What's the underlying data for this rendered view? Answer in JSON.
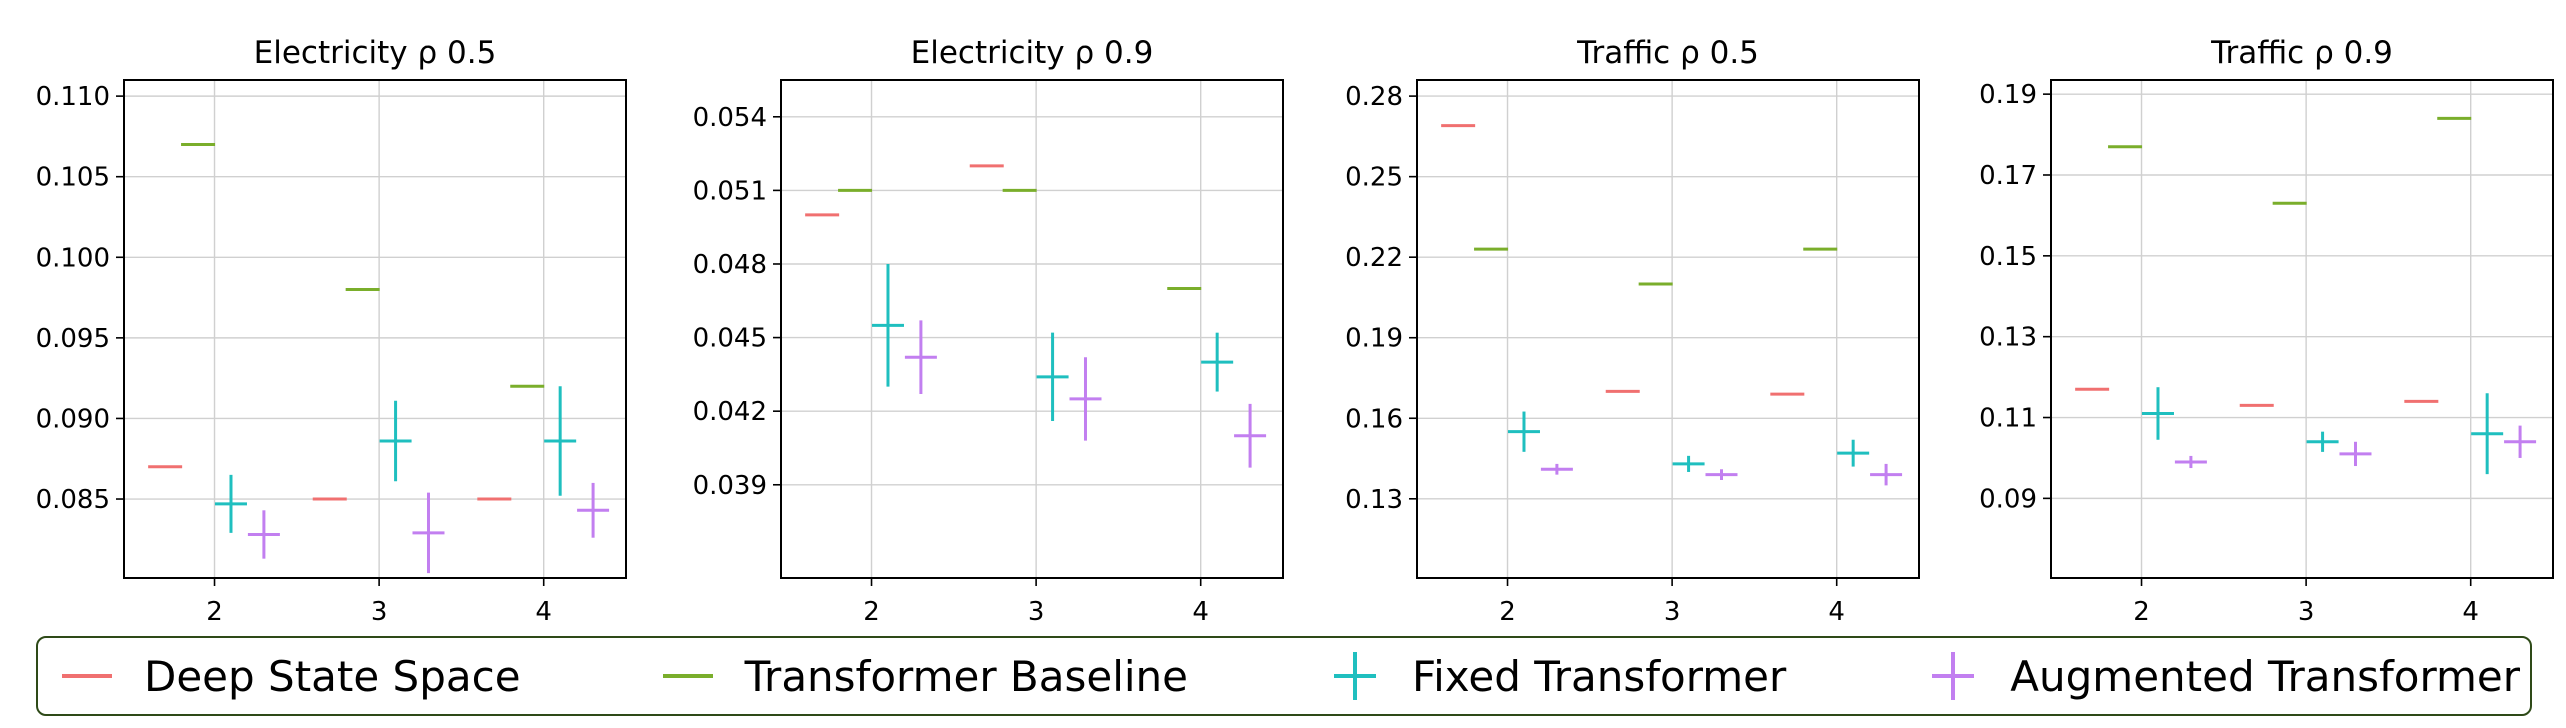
{
  "legend": {
    "items": [
      {
        "label": "Deep State Space",
        "color": "#f07070",
        "marker": "dash"
      },
      {
        "label": "Transformer Baseline",
        "color": "#7aae2b",
        "marker": "dash"
      },
      {
        "label": "Fixed Transformer",
        "color": "#1fbfbf",
        "marker": "cross"
      },
      {
        "label": "Augmented Transformer",
        "color": "#c27ff0",
        "marker": "cross"
      }
    ]
  },
  "chart_data": [
    {
      "type": "scatter",
      "title": "Electricity ρ 0.5",
      "categories": [
        "2",
        "3",
        "4"
      ],
      "xlim": [
        1.45,
        4.5
      ],
      "ylim": [
        0.0801,
        0.111
      ],
      "yticks": [
        "0.110",
        "0.105",
        "0.100",
        "0.095",
        "0.090",
        "0.085"
      ],
      "grid": true,
      "series": [
        {
          "name": "Deep State Space",
          "x": [
            1.7,
            2.7,
            3.7
          ],
          "y": [
            0.087,
            0.085,
            0.085
          ]
        },
        {
          "name": "Transformer Baseline",
          "x": [
            1.9,
            2.9,
            3.9
          ],
          "y": [
            0.107,
            0.098,
            0.092
          ]
        },
        {
          "name": "Fixed Transformer",
          "x": [
            2.1,
            3.1,
            4.1
          ],
          "y": [
            0.0847,
            0.0886,
            0.0886
          ],
          "err": [
            0.0018,
            0.0025,
            0.0034
          ]
        },
        {
          "name": "Augmented Transformer",
          "x": [
            2.3,
            3.3,
            4.3
          ],
          "y": [
            0.0828,
            0.0829,
            0.0843
          ],
          "err": [
            0.0015,
            0.0025,
            0.0017
          ]
        }
      ]
    },
    {
      "type": "scatter",
      "title": "Electricity ρ 0.9",
      "categories": [
        "2",
        "3",
        "4"
      ],
      "xlim": [
        1.45,
        4.5
      ],
      "ylim": [
        0.0352,
        0.0555
      ],
      "yticks": [
        "0.054",
        "0.051",
        "0.048",
        "0.045",
        "0.042",
        "0.039"
      ],
      "grid": true,
      "series": [
        {
          "name": "Deep State Space",
          "x": [
            1.7,
            2.7,
            3.7
          ],
          "y": [
            0.05,
            0.052,
            null
          ]
        },
        {
          "name": "Transformer Baseline",
          "x": [
            1.9,
            2.9,
            3.9
          ],
          "y": [
            0.051,
            0.051,
            0.047
          ]
        },
        {
          "name": "Fixed Transformer",
          "x": [
            2.1,
            3.1,
            4.1
          ],
          "y": [
            0.0455,
            0.0434,
            0.044
          ],
          "err": [
            0.0025,
            0.0018,
            0.0012
          ]
        },
        {
          "name": "Augmented Transformer",
          "x": [
            2.3,
            3.3,
            4.3
          ],
          "y": [
            0.0442,
            0.0425,
            0.041
          ],
          "err": [
            0.0015,
            0.0017,
            0.0013
          ]
        }
      ]
    },
    {
      "type": "scatter",
      "title": "Traffic ρ 0.5",
      "categories": [
        "2",
        "3",
        "4"
      ],
      "xlim": [
        1.45,
        4.5
      ],
      "ylim": [
        0.1005,
        0.286
      ],
      "yticks": [
        "0.28",
        "0.25",
        "0.22",
        "0.19",
        "0.16",
        "0.13"
      ],
      "grid": true,
      "series": [
        {
          "name": "Deep State Space",
          "x": [
            1.7,
            2.7,
            3.7
          ],
          "y": [
            0.269,
            0.17,
            0.169
          ]
        },
        {
          "name": "Transformer Baseline",
          "x": [
            1.9,
            2.9,
            3.9
          ],
          "y": [
            0.223,
            0.21,
            0.223
          ]
        },
        {
          "name": "Fixed Transformer",
          "x": [
            2.1,
            3.1,
            4.1
          ],
          "y": [
            0.155,
            0.143,
            0.147
          ],
          "err": [
            0.0075,
            0.003,
            0.005
          ]
        },
        {
          "name": "Augmented Transformer",
          "x": [
            2.3,
            3.3,
            4.3
          ],
          "y": [
            0.141,
            0.139,
            0.139
          ],
          "err": [
            0.002,
            0.002,
            0.004
          ]
        }
      ]
    },
    {
      "type": "scatter",
      "title": "Traffic ρ 0.9",
      "categories": [
        "2",
        "3",
        "4"
      ],
      "xlim": [
        1.45,
        4.5
      ],
      "ylim": [
        0.0703,
        0.1935
      ],
      "yticks": [
        "0.19",
        "0.17",
        "0.15",
        "0.13",
        "0.11",
        "0.09"
      ],
      "grid": true,
      "series": [
        {
          "name": "Deep State Space",
          "x": [
            1.7,
            2.7,
            3.7
          ],
          "y": [
            0.117,
            0.113,
            0.114
          ]
        },
        {
          "name": "Transformer Baseline",
          "x": [
            1.9,
            2.9,
            3.9
          ],
          "y": [
            0.177,
            0.163,
            0.184
          ]
        },
        {
          "name": "Fixed Transformer",
          "x": [
            2.1,
            3.1,
            4.1
          ],
          "y": [
            0.111,
            0.104,
            0.106
          ],
          "err": [
            0.0065,
            0.0025,
            0.01
          ]
        },
        {
          "name": "Augmented Transformer",
          "x": [
            2.3,
            3.3,
            4.3
          ],
          "y": [
            0.099,
            0.101,
            0.104
          ],
          "err": [
            0.0015,
            0.003,
            0.004
          ]
        }
      ]
    }
  ]
}
